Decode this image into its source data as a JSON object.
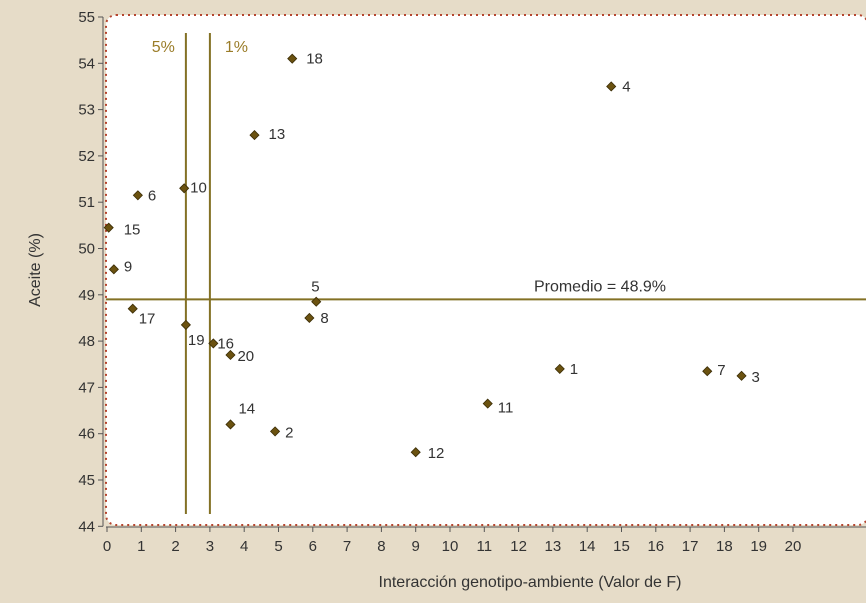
{
  "colors": {
    "background": "#e6dcc8",
    "plot_background": "#ffffff",
    "border": "#b5452f",
    "line": "#837125",
    "marker": "#6b5210",
    "text": "#333333",
    "threshold_label": "#9a7c28"
  },
  "chart_data": {
    "type": "scatter",
    "title": "",
    "xlabel": "Interacción genotipo-ambiente (Valor de F)",
    "ylabel": "Aceite (%)",
    "xlim": [
      0,
      22.5
    ],
    "ylim": [
      44,
      55
    ],
    "x_ticks": [
      0,
      1,
      2,
      3,
      4,
      5,
      6,
      7,
      8,
      9,
      10,
      11,
      12,
      13,
      14,
      15,
      16,
      17,
      18,
      19,
      20
    ],
    "y_ticks": [
      44,
      45,
      46,
      47,
      48,
      49,
      50,
      51,
      52,
      53,
      54,
      55
    ],
    "grid": false,
    "series": [
      {
        "points": [
          {
            "label": "1",
            "x": 13.2,
            "y": 47.4
          },
          {
            "label": "2",
            "x": 4.9,
            "y": 46.05
          },
          {
            "label": "3",
            "x": 18.5,
            "y": 47.25
          },
          {
            "label": "4",
            "x": 14.7,
            "y": 53.5
          },
          {
            "label": "5",
            "x": 6.1,
            "y": 48.85
          },
          {
            "label": "6",
            "x": 0.9,
            "y": 51.15
          },
          {
            "label": "7",
            "x": 17.5,
            "y": 47.35
          },
          {
            "label": "8",
            "x": 5.9,
            "y": 48.5
          },
          {
            "label": "9",
            "x": 0.2,
            "y": 49.55
          },
          {
            "label": "10",
            "x": 2.25,
            "y": 51.3
          },
          {
            "label": "11",
            "x": 11.1,
            "y": 46.65
          },
          {
            "label": "12",
            "x": 9.0,
            "y": 45.6
          },
          {
            "label": "13",
            "x": 4.3,
            "y": 52.45
          },
          {
            "label": "14",
            "x": 3.6,
            "y": 46.2
          },
          {
            "label": "15",
            "x": 0.05,
            "y": 50.45
          },
          {
            "label": "16",
            "x": 3.1,
            "y": 47.95
          },
          {
            "label": "17",
            "x": 0.75,
            "y": 48.7
          },
          {
            "label": "18",
            "x": 5.4,
            "y": 54.1
          },
          {
            "label": "19",
            "x": 2.3,
            "y": 48.35
          },
          {
            "label": "20",
            "x": 3.6,
            "y": 47.7
          }
        ]
      }
    ],
    "reference_lines": {
      "horizontal": [
        {
          "value": 48.9,
          "label": "Promedio = 48.9%"
        }
      ],
      "vertical": [
        {
          "value": 2.3,
          "label": "5%"
        },
        {
          "value": 3.0,
          "label": "1%"
        }
      ]
    }
  }
}
